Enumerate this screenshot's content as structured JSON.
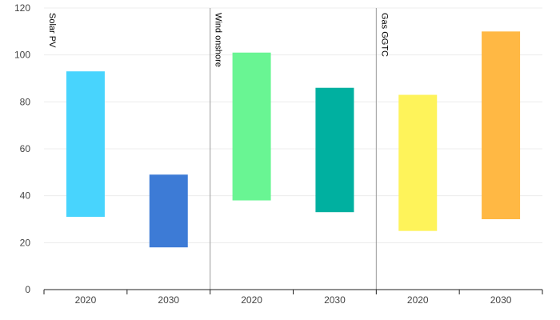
{
  "chart_data": {
    "type": "bar",
    "subtype": "floating-range",
    "title": "",
    "xlabel": "",
    "ylabel": "",
    "ylim": [
      0,
      120
    ],
    "yticks": [
      "0",
      "20",
      "40",
      "60",
      "80",
      "100",
      "120"
    ],
    "grid": true,
    "groups": [
      {
        "label": "Solar PV",
        "bars": [
          {
            "x": "2020",
            "low": 31,
            "high": 93,
            "color": "#48d4fd"
          },
          {
            "x": "2030",
            "low": 18,
            "high": 49,
            "color": "#3d7bd6"
          }
        ]
      },
      {
        "label": "Wind onshore",
        "bars": [
          {
            "x": "2020",
            "low": 38,
            "high": 101,
            "color": "#69f593"
          },
          {
            "x": "2030",
            "low": 33,
            "high": 86,
            "color": "#00b0a0"
          }
        ]
      },
      {
        "label": "Gas GGTC",
        "bars": [
          {
            "x": "2020",
            "low": 25,
            "high": 83,
            "color": "#fef35a"
          },
          {
            "x": "2030",
            "low": 30,
            "high": 110,
            "color": "#ffb844"
          }
        ]
      }
    ]
  },
  "colors": {
    "grid": "#ececec",
    "divider": "#9a9a9a",
    "axis": "#222222"
  }
}
